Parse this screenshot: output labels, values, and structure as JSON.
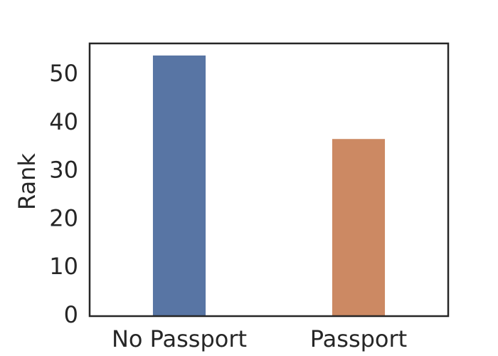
{
  "chart_data": {
    "type": "bar",
    "y_label": "Rank",
    "categories": [
      "No Passport",
      "Passport"
    ],
    "values": [
      54,
      36.7
    ],
    "colors": [
      "#5875a4",
      "#cc8963"
    ],
    "ylim": [
      0,
      56.5
    ],
    "yticks": [
      0,
      10,
      20,
      30,
      40,
      50
    ]
  }
}
